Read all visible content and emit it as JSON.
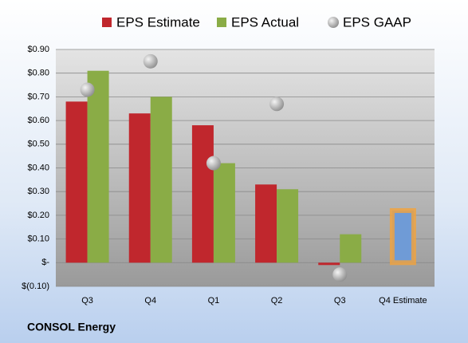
{
  "chart_data": {
    "type": "bar",
    "categories": [
      "Q3",
      "Q4",
      "Q1",
      "Q2",
      "Q3",
      "Q4 Estimate"
    ],
    "series": [
      {
        "name": "EPS Estimate",
        "color": "#c0272d",
        "values": [
          0.68,
          0.63,
          0.58,
          0.33,
          -0.01,
          0.22
        ],
        "point_colors": [
          "#c0272d",
          "#c0272d",
          "#c0272d",
          "#c0272d",
          "#c0272d",
          "#6f9bd6"
        ]
      },
      {
        "name": "EPS Actual",
        "color": "#8aac46",
        "values": [
          0.81,
          0.7,
          0.42,
          0.31,
          0.12,
          null
        ]
      },
      {
        "name": "EPS GAAP",
        "color": "#b8b8b8",
        "marker": "sphere",
        "values": [
          0.73,
          0.85,
          0.42,
          0.67,
          -0.05,
          null
        ]
      }
    ],
    "highlight_stroke": "#f4a33a",
    "ylim": [
      -0.1,
      0.9
    ],
    "yticks": [
      {
        "value": -0.1,
        "label": "$(0.10)"
      },
      {
        "value": 0,
        "label": "$-"
      },
      {
        "value": 0.1,
        "label": "$0.10"
      },
      {
        "value": 0.2,
        "label": "$0.20"
      },
      {
        "value": 0.3,
        "label": "$0.30"
      },
      {
        "value": 0.4,
        "label": "$0.40"
      },
      {
        "value": 0.5,
        "label": "$0.50"
      },
      {
        "value": 0.6,
        "label": "$0.60"
      },
      {
        "value": 0.7,
        "label": "$0.70"
      },
      {
        "value": 0.8,
        "label": "$0.80"
      },
      {
        "value": 0.9,
        "label": "$0.90"
      }
    ],
    "grid": true,
    "company": "CONSOL Energy"
  }
}
